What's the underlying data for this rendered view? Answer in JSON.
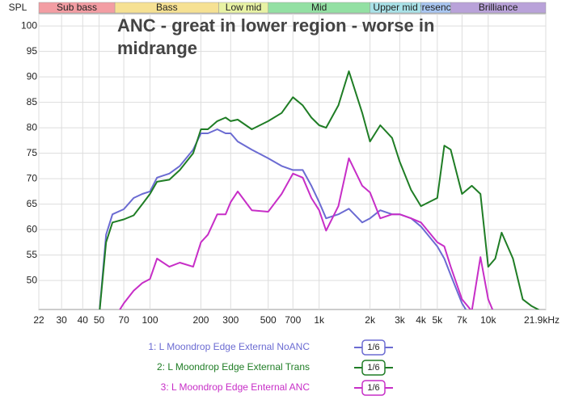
{
  "chart_data": {
    "type": "line",
    "title": "ANC - great in lower region - worse in midrange",
    "y_label": "SPL",
    "xscale": "log",
    "xlim": [
      22,
      21900
    ],
    "ylim": [
      44.3,
      102.4
    ],
    "xticks": [
      22,
      30,
      40,
      50,
      70,
      100,
      200,
      300,
      500,
      700,
      {
        "value": 1000,
        "label": "1k"
      },
      {
        "value": 2000,
        "label": "2k"
      },
      {
        "value": 3000,
        "label": "3k"
      },
      {
        "value": 4000,
        "label": "4k"
      },
      {
        "value": 5000,
        "label": "5k"
      },
      {
        "value": 7000,
        "label": "7k"
      },
      {
        "value": 10000,
        "label": "10k"
      },
      {
        "value": 21900,
        "label": "21.9kHz"
      }
    ],
    "yticks": [
      50,
      55,
      60,
      65,
      70,
      75,
      80,
      85,
      90,
      95,
      100
    ],
    "grid": true,
    "bands": [
      {
        "name": "Sub bass",
        "from": 22,
        "to": 62,
        "color": "#f39da3"
      },
      {
        "name": "Bass",
        "from": 62,
        "to": 255,
        "color": "#f6e193"
      },
      {
        "name": "Low mid",
        "from": 255,
        "to": 500,
        "color": "#e8f2a4"
      },
      {
        "name": "Mid",
        "from": 500,
        "to": 2000,
        "color": "#93e0a3"
      },
      {
        "name": "Upper mid",
        "from": 2000,
        "to": 4000,
        "color": "#a9e2e8"
      },
      {
        "name": "Presence",
        "from": 4000,
        "to": 6000,
        "color": "#a9c6f1"
      },
      {
        "name": "Brilliance",
        "from": 6000,
        "to": 21900,
        "color": "#b9a2d9"
      }
    ],
    "x": [
      50,
      55,
      60,
      70,
      80,
      90,
      100,
      110,
      130,
      150,
      180,
      200,
      220,
      250,
      280,
      300,
      330,
      400,
      500,
      600,
      700,
      800,
      900,
      1000,
      1100,
      1300,
      1500,
      1800,
      2000,
      2300,
      2700,
      3000,
      3500,
      4000,
      5000,
      5500,
      6000,
      7000,
      8000,
      9000,
      10000,
      11000,
      12000,
      14000,
      16000,
      18000,
      20000
    ],
    "series": [
      {
        "name": "1: L Moondrop Edge External NoANC",
        "smoothing": "1/6",
        "color": "#6b6bd2",
        "values": [
          43,
          59,
          63,
          64,
          66.2,
          67,
          67.5,
          70.2,
          71,
          72.5,
          75.7,
          78.9,
          78.9,
          79.7,
          78.9,
          78.9,
          77.3,
          75.7,
          74,
          72.5,
          71.7,
          71.7,
          68.6,
          65.4,
          62.2,
          63,
          64.1,
          61.4,
          62.2,
          63.8,
          63,
          63,
          62.2,
          60.6,
          56.7,
          54.3,
          51.1,
          45.5,
          42.4,
          40,
          null,
          null,
          null,
          null,
          null,
          null,
          null
        ]
      },
      {
        "name": "2: L Moondrop Edge External Trans",
        "smoothing": "1/6",
        "color": "#1f7d25",
        "values": [
          43,
          57.5,
          61.4,
          62,
          62.8,
          65,
          67,
          69.4,
          69.8,
          71.7,
          75,
          79.7,
          79.7,
          81.3,
          82,
          81.3,
          81.6,
          79.7,
          81.3,
          82.9,
          86,
          84.4,
          82,
          80.5,
          80,
          84.4,
          91.1,
          82.9,
          77.3,
          80.5,
          78,
          73.3,
          67.8,
          64.6,
          66.2,
          76.5,
          75.7,
          67,
          68.6,
          67,
          52.7,
          54.3,
          59.4,
          54.3,
          46.3,
          45,
          44.2
        ]
      },
      {
        "name": "3: L Moondrop Edge Enternal ANC",
        "smoothing": "1/6",
        "color": "#c72ec7",
        "values": [
          null,
          null,
          42,
          45.5,
          48,
          49.5,
          50.3,
          54.3,
          52.7,
          53.5,
          52.7,
          57.5,
          59,
          63,
          63,
          65.4,
          67.5,
          63.8,
          63.5,
          67,
          71,
          70.2,
          66.2,
          63.8,
          59.8,
          64.6,
          74,
          68.6,
          67.3,
          62.2,
          63,
          63,
          62.2,
          61.4,
          57.5,
          56.7,
          52.7,
          46.3,
          44,
          54.6,
          46.3,
          43,
          42,
          null,
          null,
          null,
          null
        ]
      }
    ]
  }
}
